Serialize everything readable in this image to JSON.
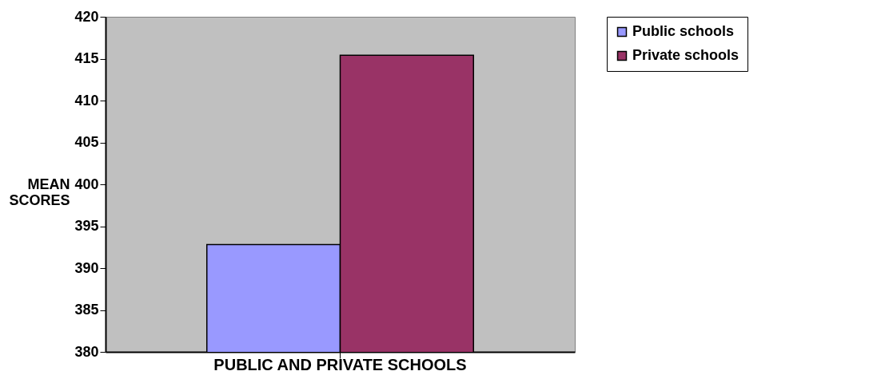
{
  "chart_data": {
    "type": "bar",
    "ylabel": "MEAN SCORES",
    "categories": [
      "PUBLIC AND PRIVATE SCHOOLS"
    ],
    "series": [
      {
        "name": "Public schools",
        "color": "#9999ff",
        "values": [
          392.8
        ]
      },
      {
        "name": "Private schools",
        "color": "#993366",
        "values": [
          415.4
        ]
      }
    ],
    "ylim": [
      380,
      420
    ],
    "yticks": [
      380,
      385,
      390,
      395,
      400,
      405,
      410,
      415,
      420
    ],
    "grid": false,
    "legend": "right"
  }
}
